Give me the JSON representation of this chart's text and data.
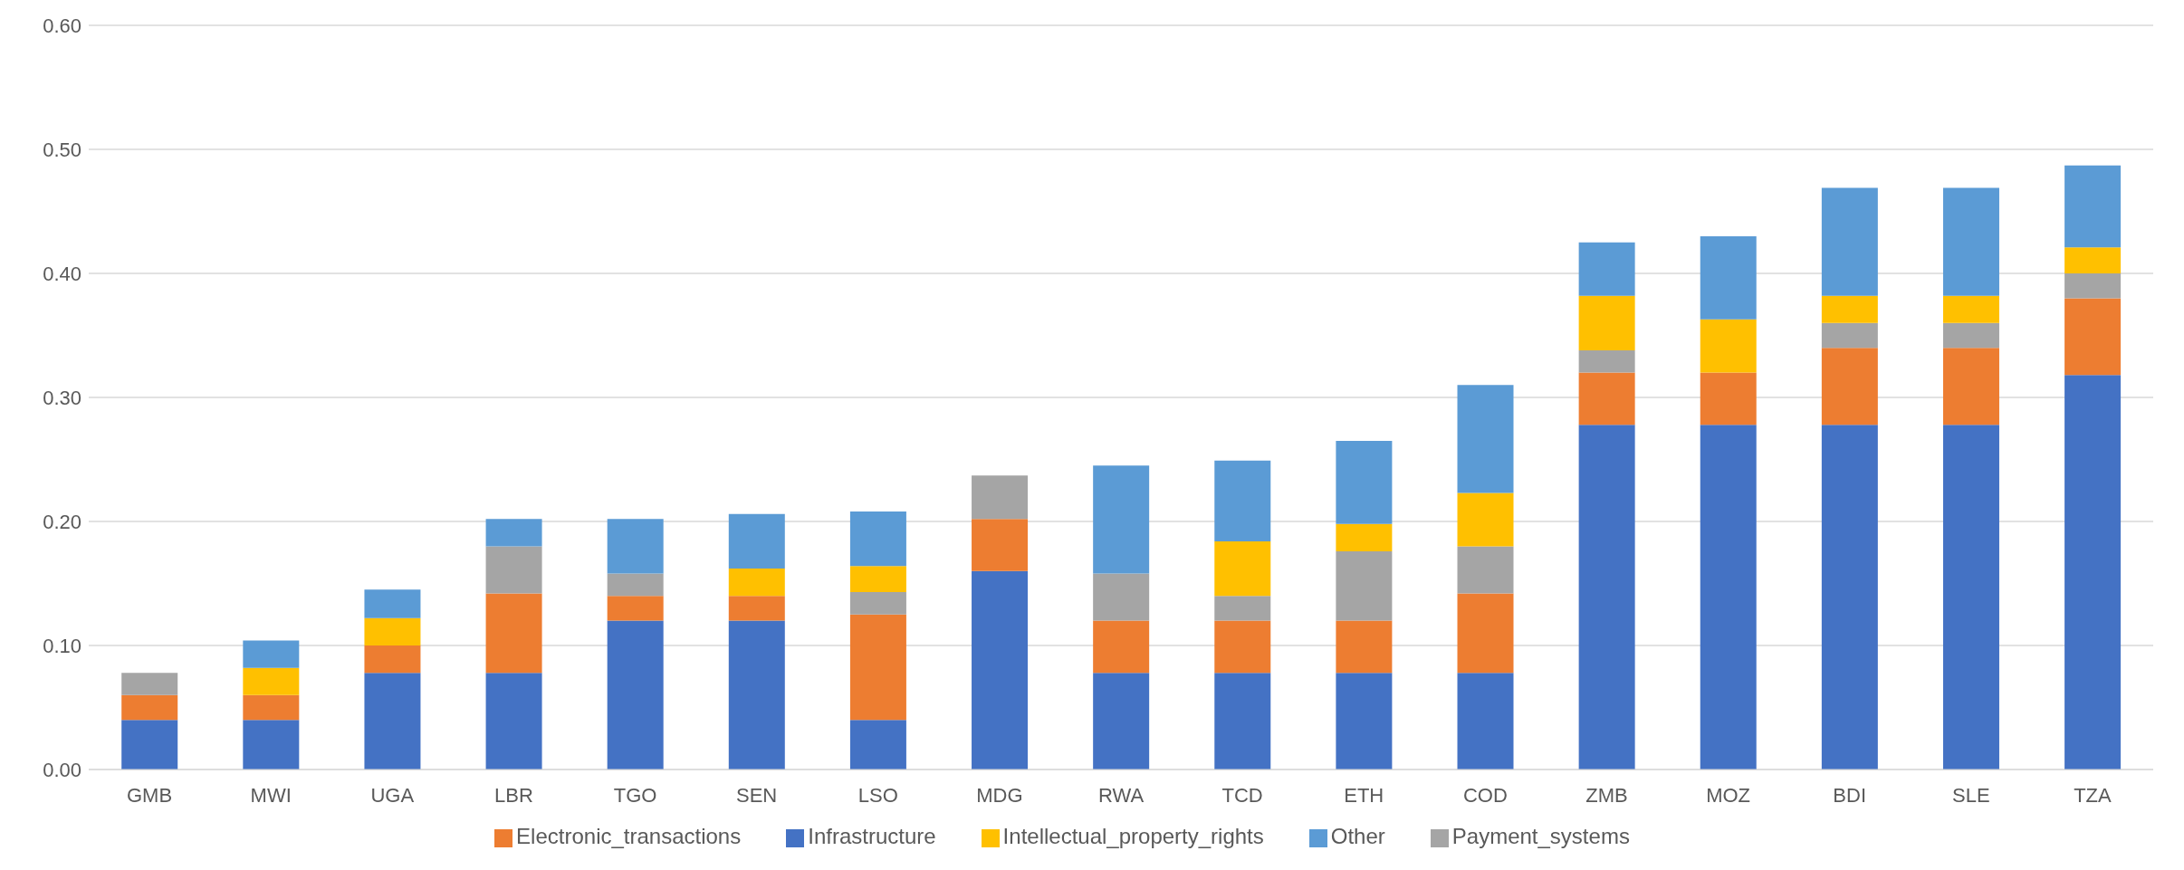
{
  "chart_data": {
    "type": "bar",
    "stacked": true,
    "categories": [
      "GMB",
      "MWI",
      "UGA",
      "LBR",
      "TGO",
      "SEN",
      "LSO",
      "MDG",
      "RWA",
      "TCD",
      "ETH",
      "COD",
      "ZMB",
      "MOZ",
      "BDI",
      "SLE",
      "TZA"
    ],
    "series": [
      {
        "name": "Infrastructure",
        "color": "#4472c4",
        "values": [
          0.04,
          0.04,
          0.078,
          0.078,
          0.12,
          0.12,
          0.04,
          0.16,
          0.078,
          0.078,
          0.078,
          0.078,
          0.278,
          0.278,
          0.278,
          0.278,
          0.318
        ]
      },
      {
        "name": "Electronic_transactions",
        "color": "#ed7d31",
        "values": [
          0.02,
          0.02,
          0.022,
          0.064,
          0.02,
          0.02,
          0.085,
          0.042,
          0.042,
          0.042,
          0.042,
          0.064,
          0.042,
          0.042,
          0.062,
          0.062,
          0.062
        ]
      },
      {
        "name": "Payment_systems",
        "color": "#a5a5a5",
        "values": [
          0.018,
          0,
          0,
          0.038,
          0.018,
          0,
          0.018,
          0.035,
          0.038,
          0.02,
          0.056,
          0.038,
          0.018,
          0,
          0.02,
          0.02,
          0.02
        ]
      },
      {
        "name": "Intellectual_property_rights",
        "color": "#ffc000",
        "values": [
          0,
          0.022,
          0.022,
          0,
          0,
          0.022,
          0.021,
          0,
          0,
          0.044,
          0.022,
          0.043,
          0.044,
          0.043,
          0.022,
          0.022,
          0.021
        ]
      },
      {
        "name": "Other",
        "color": "#5b9bd5",
        "values": [
          0,
          0.022,
          0.023,
          0.022,
          0.044,
          0.044,
          0.044,
          0,
          0.087,
          0.065,
          0.067,
          0.087,
          0.043,
          0.067,
          0.087,
          0.087,
          0.066
        ]
      }
    ],
    "ylim": [
      0,
      0.6
    ],
    "yticks": [
      {
        "value": 0,
        "label": "0.00"
      },
      {
        "value": 0.1,
        "label": "0.10"
      },
      {
        "value": 0.2,
        "label": "0.20"
      },
      {
        "value": 0.3,
        "label": "0.30"
      },
      {
        "value": 0.4,
        "label": "0.40"
      },
      {
        "value": 0.5,
        "label": "0.50"
      },
      {
        "value": 0.6,
        "label": "0.60"
      }
    ],
    "grid": "y",
    "legend": "bottom"
  }
}
